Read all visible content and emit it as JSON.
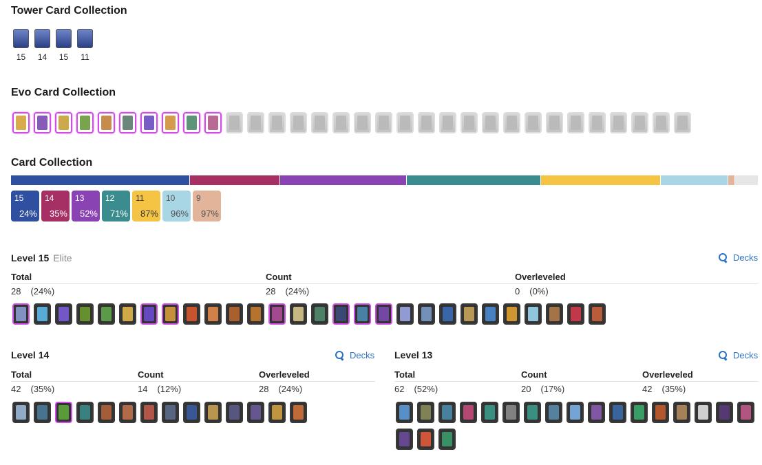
{
  "tower": {
    "title": "Tower Card Collection",
    "levels": [
      "15",
      "14",
      "15",
      "11"
    ]
  },
  "evo": {
    "title": "Evo Card Collection",
    "owned": 10,
    "total": 32
  },
  "collection": {
    "title": "Card Collection",
    "segments": [
      {
        "color": "#2f4fa0",
        "share": 0.24,
        "ticks": [
          0.84
        ]
      },
      {
        "color": "#a62f63",
        "share": 0.12,
        "ticks": []
      },
      {
        "color": "#8a43b3",
        "share": 0.17,
        "ticks": [
          0.24
        ]
      },
      {
        "color": "#3a8c8e",
        "share": 0.18,
        "ticks": [
          0.39
        ]
      },
      {
        "color": "#f6c444",
        "share": 0.16,
        "ticks": [
          0.57
        ]
      },
      {
        "color": "#a9d6e5",
        "share": 0.09,
        "ticks": []
      },
      {
        "color": "#e2b59a",
        "share": 0.01,
        "ticks": []
      },
      {
        "color": "#e6e6e6",
        "share": 0.03,
        "ticks": []
      }
    ],
    "badges": [
      {
        "level": "15",
        "pct": "24%",
        "color": "#2f4fa0",
        "text": "#ffffff"
      },
      {
        "level": "14",
        "pct": "35%",
        "color": "#a62f63",
        "text": "#ffffff"
      },
      {
        "level": "13",
        "pct": "52%",
        "color": "#8a43b3",
        "text": "#ffffff"
      },
      {
        "level": "12",
        "pct": "71%",
        "color": "#3a8c8e",
        "text": "#ffffff"
      },
      {
        "level": "11",
        "pct": "87%",
        "color": "#f6c444",
        "text": "#333333"
      },
      {
        "level": "10",
        "pct": "96%",
        "color": "#a9d6e5",
        "text": "#555555"
      },
      {
        "level": "9",
        "pct": "97%",
        "color": "#e2b59a",
        "text": "#555555"
      }
    ]
  },
  "levels": {
    "l15": {
      "title": "Level 15",
      "sub": "Elite",
      "decks": "Decks",
      "labels": {
        "total": "Total",
        "count": "Count",
        "over": "Overleveled"
      },
      "total": "28",
      "total_pct": "(24%)",
      "count": "28",
      "count_pct": "(24%)",
      "over": "0",
      "over_pct": "(0%)",
      "cards": [
        "#8a9bcf",
        "#5bb8e8",
        "#7a5bd6",
        "#6c9a2e",
        "#5fa64a",
        "#e0b64a",
        "#6b4bd0",
        "#d49a3a",
        "#d8582c",
        "#e08a4a",
        "#b6652e",
        "#c47a2c",
        "#b04a9a",
        "#d6c48a",
        "#4f8a6a",
        "#3b4a7a",
        "#4a8ab0",
        "#7a4ab0",
        "#9aa6e6",
        "#7a9ac8",
        "#3a6ab6",
        "#c8a35a",
        "#4a8ad0",
        "#e0a030",
        "#9ad6f0",
        "#b07a4a",
        "#d03a4a",
        "#c8603a"
      ],
      "evo_first": 16
    },
    "l14": {
      "title": "Level 14",
      "decks": "Decks",
      "labels": {
        "total": "Total",
        "count": "Count",
        "over": "Overleveled"
      },
      "total": "42",
      "total_pct": "(35%)",
      "count": "14",
      "count_pct": "(12%)",
      "over": "28",
      "over_pct": "(24%)",
      "cards": [
        "#9ab6d6",
        "#4a7a9a",
        "#5ea63a",
        "#3a8a8a",
        "#b0603a",
        "#c0704a",
        "#c05a4a",
        "#5a6a8a",
        "#3a5aa0",
        "#c8a050",
        "#5a5a8a",
        "#6a5a9a",
        "#d0a040",
        "#d0703a"
      ],
      "evo_first": 3
    },
    "l13": {
      "title": "Level 13",
      "decks": "Decks",
      "labels": {
        "total": "Total",
        "count": "Count",
        "over": "Overleveled"
      },
      "total": "62",
      "total_pct": "(52%)",
      "count": "20",
      "count_pct": "(17%)",
      "over": "42",
      "over_pct": "(35%)",
      "cards": [
        "#5a9ad6",
        "#8a8a5a",
        "#4a8aaa",
        "#c04a7a",
        "#3a9a8a",
        "#8a8a8a",
        "#3a9a8a",
        "#5a8aaa",
        "#7ab0e6",
        "#8a5ab0",
        "#3a6aaa",
        "#3aaa6a",
        "#c05a2a",
        "#b08a5a",
        "#e0e0e0",
        "#5a3a7a",
        "#c05a8a",
        "#6a4a9a",
        "#e05a3a",
        "#3a9a6a"
      ],
      "evo_first": 0
    }
  }
}
